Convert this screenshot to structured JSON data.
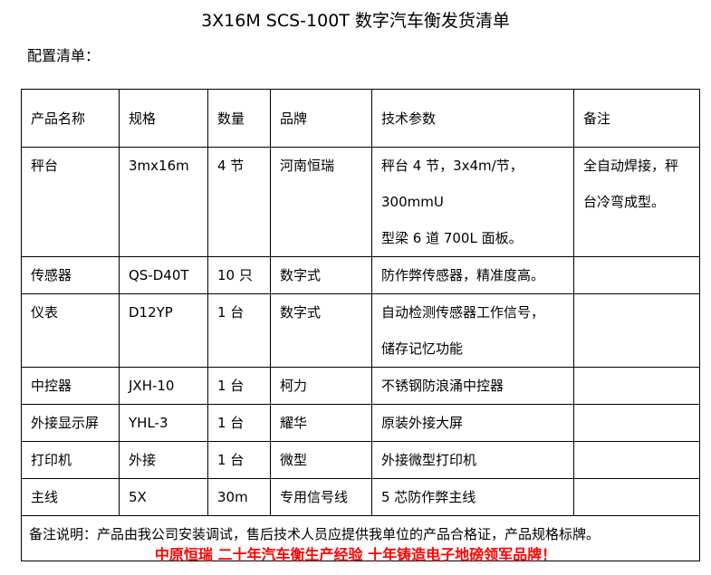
{
  "title": "3X16M SCS-100T 数字汽车衡发货清单",
  "subtitle": "配置清单：",
  "table": {
    "headers": [
      "产品名称",
      "规格",
      "数量",
      "品牌",
      "技术参数",
      "备注"
    ],
    "rows": [
      {
        "name": "秤台",
        "spec": "3mx16m",
        "qty": "4 节",
        "brand": "河南恒瑞",
        "tech": [
          "秤台 4 节，3x4m/节，300mmU",
          "型梁 6 道 700L 面板。"
        ],
        "remark": [
          "全自动焊接，秤",
          "台冷弯成型。"
        ]
      },
      {
        "name": "传感器",
        "spec": "QS-D40T",
        "qty": "10 只",
        "brand": "数字式",
        "tech": [
          "防作弊传感器，精准度高。"
        ],
        "remark": []
      },
      {
        "name": "仪表",
        "spec": "D12YP",
        "qty": "1 台",
        "brand": "数字式",
        "tech": [
          "自动检测传感器工作信号，",
          "储存记忆功能"
        ],
        "remark": []
      },
      {
        "name": "中控器",
        "spec": "JXH-10",
        "qty": "1 台",
        "brand": "柯力",
        "tech": [
          "不锈钢防浪涌中控器"
        ],
        "remark": []
      },
      {
        "name": "外接显示屏",
        "spec": "YHL-3",
        "qty": "1 台",
        "brand": "耀华",
        "tech": [
          "原装外接大屏"
        ],
        "remark": []
      },
      {
        "name": "打印机",
        "spec": "外接",
        "qty": "1 台",
        "brand": "微型",
        "tech": [
          "外接微型打印机"
        ],
        "remark": []
      },
      {
        "name": "主线",
        "spec": "5X",
        "qty": "30m",
        "brand": "专用信号线",
        "tech": [
          "5 芯防作弊主线"
        ],
        "remark": []
      }
    ],
    "note": "备注说明：产品由我公司安装调试，售后技术人员应提供我单位的产品合格证，产品规格标牌。"
  },
  "footer": "中原恒瑞 二十年汽车衡生产经验 十年铸造电子地磅领军品牌！",
  "colors": {
    "footer": "#ff0000"
  }
}
